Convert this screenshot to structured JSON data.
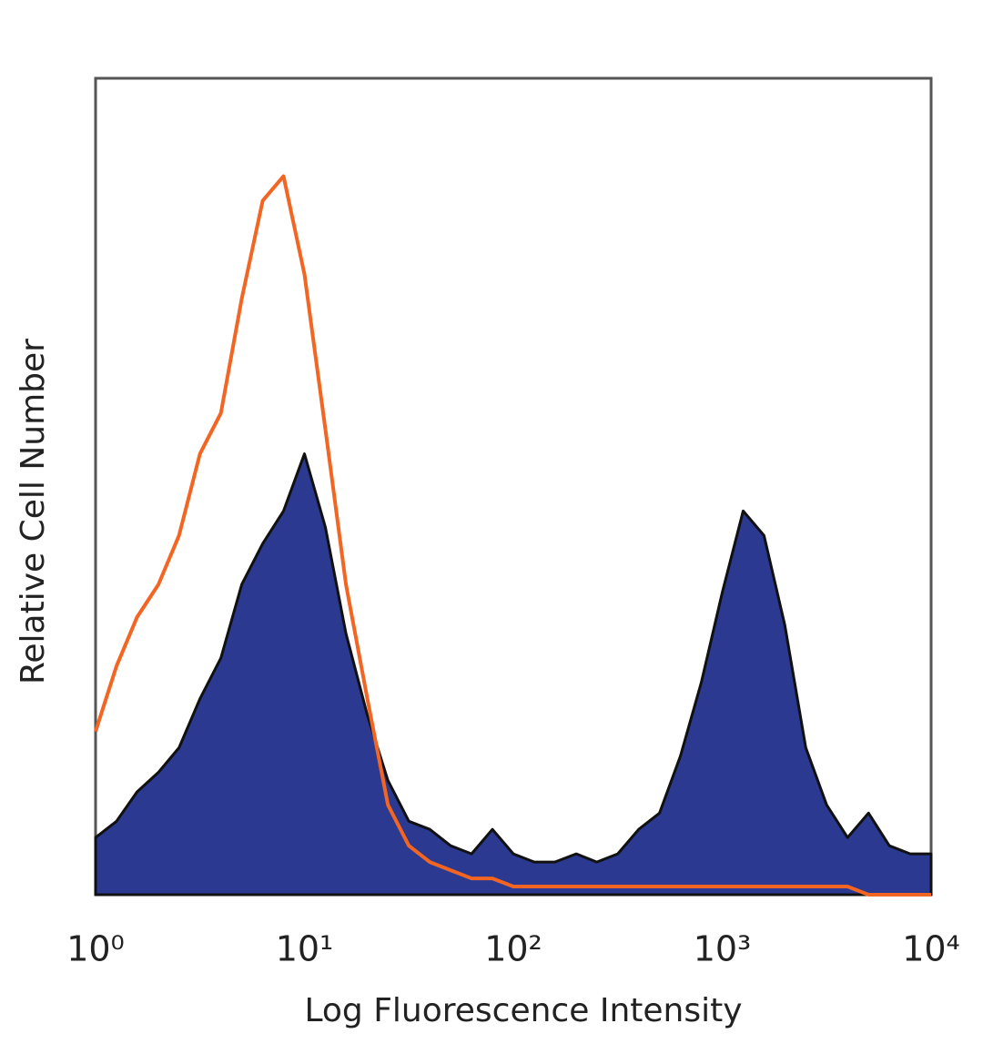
{
  "chart_data": {
    "type": "histogram-overlay",
    "xlabel": "Log Fluorescence Intensity",
    "ylabel": "Relative Cell Number",
    "xscale": "log",
    "xlim": [
      1,
      10000
    ],
    "xticks": [
      {
        "value": 1,
        "label": "10⁰"
      },
      {
        "value": 10,
        "label": "10¹"
      },
      {
        "value": 100,
        "label": "10²"
      },
      {
        "value": 1000,
        "label": "10³"
      },
      {
        "value": 10000,
        "label": "10⁴"
      }
    ],
    "ylim": [
      0,
      100
    ],
    "x": [
      1,
      1.26,
      1.58,
      2,
      2.51,
      3.16,
      3.98,
      5.01,
      6.31,
      7.94,
      10,
      12.6,
      15.8,
      20,
      25.1,
      31.6,
      39.8,
      50.1,
      63.1,
      79.4,
      100,
      126,
      158,
      200,
      251,
      316,
      398,
      501,
      631,
      794,
      1000,
      1259,
      1585,
      1995,
      2512,
      3162,
      3981,
      5012,
      6310,
      7943,
      10000
    ],
    "series": [
      {
        "color": "#2b3990",
        "outline": "#111111",
        "filled": true,
        "values": [
          7,
          9,
          12.6,
          15,
          18,
          24,
          29,
          38,
          43,
          47,
          54,
          45,
          32,
          22,
          14,
          9,
          8,
          6,
          5,
          8,
          5,
          4,
          4,
          5,
          4,
          5,
          8,
          10,
          17,
          26,
          37,
          47,
          44,
          33,
          18,
          11,
          7,
          10,
          6,
          5,
          5
        ]
      },
      {
        "color": "#f26522",
        "filled": false,
        "values": [
          20,
          28,
          34,
          38,
          44,
          54,
          59,
          73,
          85,
          88,
          76,
          57,
          38,
          24,
          11,
          6,
          4,
          3,
          2,
          2,
          1,
          1,
          1,
          1,
          1,
          1,
          1,
          1,
          1,
          1,
          1,
          1,
          1,
          1,
          1,
          1,
          1,
          0,
          0,
          0,
          0
        ]
      }
    ]
  }
}
